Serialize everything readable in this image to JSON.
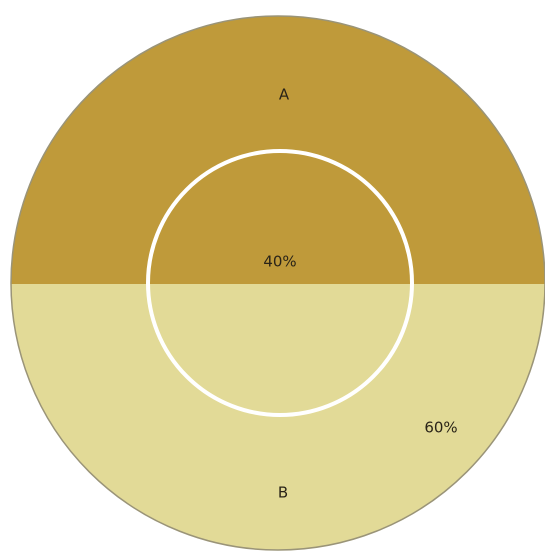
{
  "segments": [
    {
      "label": "A",
      "share": "40%"
    },
    {
      "label": "B",
      "share": "60%"
    }
  ]
}
